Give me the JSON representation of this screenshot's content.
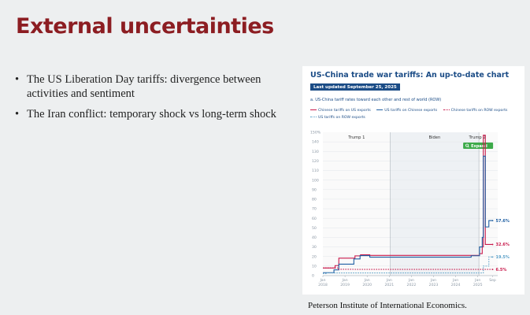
{
  "slide": {
    "title": "External uncertainties",
    "bullets": [
      "The US Liberation Day tariffs: divergence between activities and sentiment",
      "The Iran conflict: temporary shock vs long-term shock"
    ],
    "source": "Peterson Institute of International Economics."
  },
  "chart": {
    "title": "US-China trade war tariffs: An up-to-date chart",
    "updated": "Last updated September 25, 2025",
    "subtitle": "a. US-China tariff rates toward each other and rest of world (ROW)",
    "legend": [
      {
        "label": "Chinese tariffs on US exports",
        "style": "solid",
        "color": "#c8194b"
      },
      {
        "label": "US tariffs on Chinese exports",
        "style": "solid",
        "color": "#1f5fa3"
      },
      {
        "label": "Chinese tariffs on ROW exports",
        "style": "dotted",
        "color": "#c8194b"
      },
      {
        "label": "US tariffs on ROW exports",
        "style": "dotted",
        "color": "#5aa0c8"
      }
    ],
    "expand_label": "Expand",
    "search_icon": "search-icon"
  },
  "chart_data": {
    "type": "line",
    "ylim": [
      0,
      150
    ],
    "yticks": [
      0,
      10,
      20,
      30,
      40,
      50,
      60,
      70,
      80,
      90,
      100,
      110,
      120,
      130,
      140
    ],
    "ytop_label": "150%",
    "xlim": [
      2018.0,
      2025.9
    ],
    "xticks": [
      {
        "x": 2018.0,
        "label": "Jan 2018"
      },
      {
        "x": 2019.0,
        "label": "Jan 2019"
      },
      {
        "x": 2020.0,
        "label": "Jan 2020"
      },
      {
        "x": 2021.0,
        "label": "Jan 2021"
      },
      {
        "x": 2022.0,
        "label": "Jan 2022"
      },
      {
        "x": 2023.0,
        "label": "Jan 2023"
      },
      {
        "x": 2024.0,
        "label": "Jan 2024"
      },
      {
        "x": 2025.0,
        "label": "Jan 2025"
      },
      {
        "x": 2025.67,
        "label": "Sep"
      }
    ],
    "periods": [
      {
        "label": "Trump 1",
        "start": 2018.0,
        "end": 2021.05,
        "shade": "#fafafa"
      },
      {
        "label": "Biden",
        "start": 2021.05,
        "end": 2025.05,
        "shade": "#eef1f4"
      },
      {
        "label": "Trump 2",
        "start": 2025.05,
        "end": 2025.9,
        "shade": "#fafafa"
      }
    ],
    "series": [
      {
        "name": "Chinese tariffs on US exports",
        "color": "#c8194b",
        "dash": "",
        "end_label": "32.6%",
        "points": [
          [
            2018.0,
            8.0
          ],
          [
            2018.55,
            8.0
          ],
          [
            2018.55,
            10.5
          ],
          [
            2018.72,
            10.5
          ],
          [
            2018.72,
            18.3
          ],
          [
            2019.45,
            18.3
          ],
          [
            2019.45,
            20.7
          ],
          [
            2019.7,
            20.7
          ],
          [
            2019.7,
            21.8
          ],
          [
            2020.12,
            21.8
          ],
          [
            2020.12,
            21.2
          ],
          [
            2025.08,
            21.2
          ],
          [
            2025.08,
            23.0
          ],
          [
            2025.2,
            23.0
          ],
          [
            2025.2,
            30.0
          ],
          [
            2025.25,
            30.0
          ],
          [
            2025.25,
            147.0
          ],
          [
            2025.34,
            147.0
          ],
          [
            2025.34,
            32.6
          ],
          [
            2025.67,
            32.6
          ]
        ]
      },
      {
        "name": "US tariffs on Chinese exports",
        "color": "#1f5fa3",
        "dash": "",
        "end_label": "57.6%",
        "points": [
          [
            2018.0,
            3.1
          ],
          [
            2018.5,
            3.1
          ],
          [
            2018.5,
            6.0
          ],
          [
            2018.72,
            6.0
          ],
          [
            2018.72,
            12.0
          ],
          [
            2019.4,
            12.0
          ],
          [
            2019.4,
            17.5
          ],
          [
            2019.68,
            17.5
          ],
          [
            2019.68,
            21.0
          ],
          [
            2020.12,
            21.0
          ],
          [
            2020.12,
            19.3
          ],
          [
            2024.7,
            19.3
          ],
          [
            2024.7,
            20.8
          ],
          [
            2025.08,
            20.8
          ],
          [
            2025.08,
            30.0
          ],
          [
            2025.2,
            30.0
          ],
          [
            2025.2,
            40.0
          ],
          [
            2025.25,
            40.0
          ],
          [
            2025.25,
            125.0
          ],
          [
            2025.34,
            125.0
          ],
          [
            2025.34,
            51.0
          ],
          [
            2025.5,
            51.0
          ],
          [
            2025.5,
            57.6
          ],
          [
            2025.67,
            57.6
          ]
        ]
      },
      {
        "name": "Chinese tariffs on ROW exports",
        "color": "#c8194b",
        "dash": "1.5,1.5",
        "end_label": "6.5%",
        "points": [
          [
            2018.0,
            8.0
          ],
          [
            2018.7,
            8.0
          ],
          [
            2018.7,
            6.7
          ],
          [
            2020.0,
            6.5
          ],
          [
            2025.67,
            6.5
          ]
        ]
      },
      {
        "name": "US tariffs on ROW exports",
        "color": "#5aa0c8",
        "dash": "1.5,1.5",
        "end_label": "19.5%",
        "points": [
          [
            2018.0,
            2.2
          ],
          [
            2018.2,
            2.2
          ],
          [
            2018.2,
            2.8
          ],
          [
            2025.25,
            2.8
          ],
          [
            2025.25,
            10.0
          ],
          [
            2025.5,
            10.0
          ],
          [
            2025.5,
            19.5
          ],
          [
            2025.67,
            19.5
          ]
        ]
      }
    ]
  }
}
